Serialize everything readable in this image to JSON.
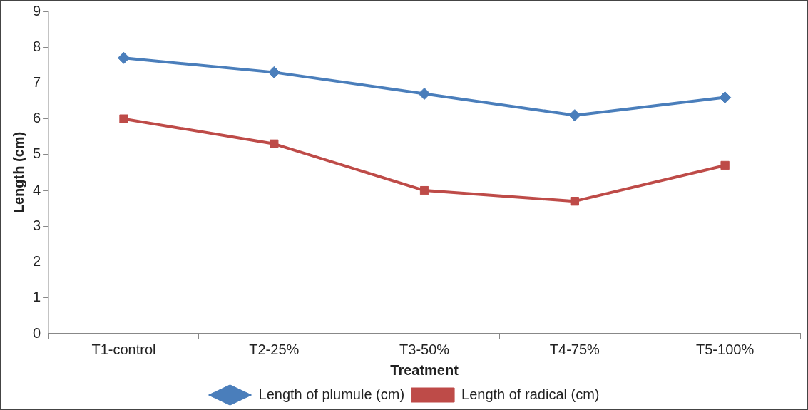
{
  "chart_data": {
    "type": "line",
    "xlabel": "Treatment",
    "ylabel": "Length (cm)",
    "categories": [
      "T1-control",
      "T2-25%",
      "T3-50%",
      "T4-75%",
      "T5-100%"
    ],
    "series": [
      {
        "name": "Length of plumule (cm)",
        "color": "#4a7ebb",
        "marker": "diamond",
        "values": [
          7.7,
          7.3,
          6.7,
          6.1,
          6.6
        ]
      },
      {
        "name": "Length of radical (cm)",
        "color": "#be4b48",
        "marker": "square",
        "values": [
          6.0,
          5.3,
          4.0,
          3.7,
          4.7
        ]
      }
    ],
    "ylim": [
      0,
      9
    ],
    "yticks": [
      0,
      1,
      2,
      3,
      4,
      5,
      6,
      7,
      8,
      9
    ],
    "grid": false,
    "legend": "bottom",
    "line_style": "solid"
  }
}
